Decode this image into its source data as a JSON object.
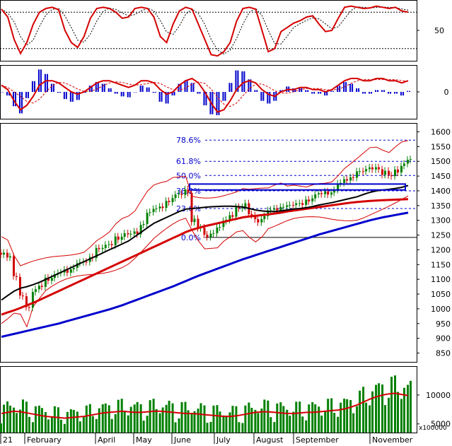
{
  "chart_data": {
    "type": "line",
    "colors": {
      "candle_up": "#008000",
      "candle_down": "#d00000",
      "ma_short": "#000000",
      "ma_mid": "#d40000",
      "ma_long": "#0000cc",
      "bollinger": "#d40000",
      "fib": "#0000cc",
      "box": "#0000cc",
      "volume": "#008000",
      "volume_ma": "#d40000",
      "oscillator": "#d40000",
      "histogram": "#0000cc"
    },
    "x_labels": [
      "21",
      "February",
      "April",
      "May",
      "June",
      "July",
      "August",
      "September",
      "November"
    ],
    "stoch_panel": {
      "ticks": [
        "50"
      ],
      "ylim": [
        0,
        100
      ],
      "levels": [
        80,
        20
      ],
      "k_series": [
        85,
        72,
        35,
        12,
        30,
        60,
        80,
        86,
        88,
        84,
        50,
        30,
        22,
        40,
        70,
        86,
        88,
        86,
        80,
        70,
        72,
        86,
        88,
        86,
        72,
        40,
        30,
        60,
        82,
        88,
        85,
        60,
        35,
        10,
        8,
        15,
        30,
        65,
        86,
        88,
        85,
        50,
        15,
        20,
        48,
        55,
        62,
        66,
        72,
        74,
        60,
        48,
        50,
        70,
        88,
        90,
        88,
        86,
        87,
        90,
        88,
        86,
        88,
        82,
        80
      ]
    },
    "macd_panel": {
      "ticks": [
        "0"
      ],
      "ylim": [
        -1.2,
        1.2
      ],
      "macd_series": [
        0.3,
        0.1,
        -0.4,
        -0.8,
        -0.6,
        -0.2,
        0.3,
        0.5,
        0.5,
        0.4,
        0.2,
        0.0,
        -0.1,
        0.0,
        0.2,
        0.4,
        0.5,
        0.5,
        0.4,
        0.3,
        0.2,
        0.3,
        0.5,
        0.5,
        0.4,
        0.1,
        -0.1,
        0.0,
        0.3,
        0.5,
        0.6,
        0.4,
        0.0,
        -0.5,
        -0.9,
        -0.8,
        -0.4,
        0.1,
        0.4,
        0.5,
        0.4,
        0.1,
        -0.1,
        -0.2,
        0.0,
        0.1,
        0.1,
        0.2,
        0.2,
        0.1,
        0.1,
        0.0,
        0.1,
        0.3,
        0.5,
        0.6,
        0.6,
        0.5,
        0.5,
        0.6,
        0.6,
        0.5,
        0.5,
        0.4,
        0.5
      ]
    },
    "price_panel": {
      "ticks": [
        "1600",
        "1550",
        "1500",
        "1450",
        "1400",
        "1350",
        "1300",
        "1250",
        "1200",
        "1150",
        "1100",
        "1050",
        "1000",
        "950",
        "900",
        "850"
      ],
      "ylim": [
        820,
        1630
      ],
      "fib_levels": [
        {
          "label": "78.6%",
          "value": 1572
        },
        {
          "label": "61.8%",
          "value": 1500
        },
        {
          "label": "50.0%",
          "value": 1452
        },
        {
          "label": "38.2%",
          "value": 1400
        },
        {
          "label": "23.6%",
          "value": 1340
        },
        {
          "label": "0.0%",
          "value": 1242
        }
      ],
      "resistance_box": [
        1403,
        1423
      ],
      "close": [
        1190,
        1170,
        1110,
        1050,
        1000,
        1060,
        1080,
        1100,
        1110,
        1120,
        1130,
        1140,
        1150,
        1160,
        1180,
        1200,
        1210,
        1220,
        1240,
        1250,
        1250,
        1260,
        1290,
        1320,
        1340,
        1350,
        1360,
        1380,
        1390,
        1400,
        1300,
        1270,
        1250,
        1260,
        1270,
        1300,
        1320,
        1340,
        1350,
        1320,
        1300,
        1310,
        1330,
        1340,
        1350,
        1345,
        1355,
        1360,
        1365,
        1380,
        1390,
        1395,
        1400,
        1420,
        1440,
        1450,
        1460,
        1470,
        1480,
        1475,
        1460,
        1450,
        1470,
        1490,
        1500
      ],
      "ma_short": [
        1030,
        1045,
        1060,
        1070,
        1075,
        1082,
        1090,
        1100,
        1110,
        1120,
        1130,
        1140,
        1150,
        1160,
        1170,
        1180,
        1190,
        1200,
        1210,
        1220,
        1230,
        1245,
        1260,
        1275,
        1290,
        1300,
        1310,
        1320,
        1330,
        1338,
        1340,
        1342,
        1344,
        1346,
        1347,
        1348,
        1348,
        1347,
        1345,
        1340,
        1335,
        1332,
        1330,
        1330,
        1332,
        1335,
        1338,
        1340,
        1343,
        1347,
        1352,
        1356,
        1360,
        1365,
        1370,
        1375,
        1380,
        1388,
        1395,
        1400,
        1403,
        1405,
        1408,
        1412,
        1418
      ],
      "ma_mid": [
        980,
        988,
        995,
        1003,
        1012,
        1020,
        1030,
        1040,
        1050,
        1060,
        1070,
        1080,
        1090,
        1100,
        1110,
        1120,
        1130,
        1140,
        1150,
        1160,
        1170,
        1180,
        1190,
        1200,
        1210,
        1220,
        1230,
        1240,
        1250,
        1260,
        1268,
        1274,
        1280,
        1285,
        1290,
        1295,
        1300,
        1305,
        1310,
        1313,
        1315,
        1318,
        1320,
        1323,
        1326,
        1330,
        1333,
        1336,
        1339,
        1342,
        1345,
        1348,
        1351,
        1354,
        1357,
        1360,
        1362,
        1364,
        1366,
        1367,
        1368,
        1369,
        1370,
        1371,
        1372
      ],
      "ma_long": [
        905,
        910,
        915,
        920,
        925,
        930,
        935,
        940,
        945,
        950,
        956,
        962,
        968,
        974,
        980,
        986,
        992,
        998,
        1005,
        1012,
        1020,
        1028,
        1036,
        1044,
        1052,
        1060,
        1068,
        1076,
        1085,
        1094,
        1103,
        1112,
        1120,
        1128,
        1136,
        1144,
        1152,
        1160,
        1168,
        1175,
        1182,
        1189,
        1196,
        1203,
        1210,
        1217,
        1224,
        1231,
        1238,
        1245,
        1252,
        1258,
        1264,
        1270,
        1276,
        1282,
        1288,
        1294,
        1300,
        1305,
        1310,
        1314,
        1318,
        1322,
        1326
      ]
    },
    "volume_panel": {
      "ticks": [
        "10000",
        "5000"
      ],
      "unit": "x100000",
      "ylim": [
        3500,
        15000
      ],
      "volume_ma": [
        6800,
        7000,
        7200,
        7100,
        6900,
        6700,
        6500,
        6300,
        6200,
        6100,
        6000,
        6100,
        6200,
        6300,
        6500,
        6700,
        6900,
        7000,
        7100,
        7200,
        7100,
        7000,
        7000,
        7100,
        7200,
        7200,
        7100,
        7000,
        6900,
        6800,
        6800,
        6700,
        6600,
        6500,
        6400,
        6300,
        6300,
        6400,
        6600,
        6800,
        7000,
        7100,
        7100,
        7000,
        6900,
        6800,
        6800,
        6900,
        7000,
        7000,
        7100,
        7200,
        7300,
        7400,
        7600,
        7900,
        8300,
        8800,
        9300,
        9700,
        10000,
        10200,
        10300,
        10100,
        9900
      ]
    }
  }
}
